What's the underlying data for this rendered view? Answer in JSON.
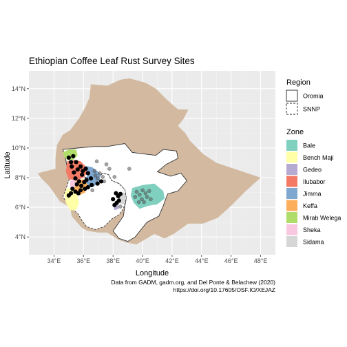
{
  "chart_data": {
    "type": "map",
    "title": "Ethiopian Coffee Leaf Rust Survey Sites",
    "xlabel": "Longitude",
    "ylabel": "Latitude",
    "xlim": [
      32.3,
      49.0
    ],
    "ylim": [
      2.8,
      15.2
    ],
    "x_ticks": [
      {
        "value": 34,
        "label": "34°E"
      },
      {
        "value": 36,
        "label": "36°E"
      },
      {
        "value": 38,
        "label": "38°E"
      },
      {
        "value": 40,
        "label": "40°E"
      },
      {
        "value": 42,
        "label": "42°E"
      },
      {
        "value": 44,
        "label": "44°E"
      },
      {
        "value": 46,
        "label": "46°E"
      },
      {
        "value": 48,
        "label": "48°E"
      }
    ],
    "y_ticks": [
      {
        "value": 4,
        "label": "4°N"
      },
      {
        "value": 6,
        "label": "6°N"
      },
      {
        "value": 8,
        "label": "8°N"
      },
      {
        "value": 10,
        "label": "10°N"
      },
      {
        "value": 12,
        "label": "12°N"
      },
      {
        "value": 14,
        "label": "14°N"
      }
    ],
    "grid": true,
    "background_color": "#ebebeb",
    "country_fill": "#d2b9a0",
    "region_legend": {
      "title": "Region",
      "items": [
        {
          "name": "Oromia",
          "linetype": "solid"
        },
        {
          "name": "SNNP",
          "linetype": "dashed"
        }
      ]
    },
    "zone_legend": {
      "title": "Zone",
      "items": [
        {
          "name": "Bale",
          "color": "#80d0c0"
        },
        {
          "name": "Bench Maji",
          "color": "#ffffa8"
        },
        {
          "name": "Gedeo",
          "color": "#b4aad2"
        },
        {
          "name": "Ilubabor",
          "color": "#f47a66"
        },
        {
          "name": "Jimma",
          "color": "#7ea8cf"
        },
        {
          "name": "Keffa",
          "color": "#fcae5a"
        },
        {
          "name": "Mirab Welega",
          "color": "#b0dd6a"
        },
        {
          "name": "Sheka",
          "color": "#f9c8e0"
        },
        {
          "name": "Sidama",
          "color": "#d6d6d6"
        }
      ]
    },
    "survey_sites": [
      {
        "lon": 35.0,
        "lat": 9.35
      },
      {
        "lon": 35.15,
        "lat": 9.05
      },
      {
        "lon": 35.3,
        "lat": 9.45
      },
      {
        "lon": 35.2,
        "lat": 8.75
      },
      {
        "lon": 35.5,
        "lat": 9.05
      },
      {
        "lon": 35.35,
        "lat": 8.35
      },
      {
        "lon": 35.6,
        "lat": 8.55
      },
      {
        "lon": 35.8,
        "lat": 8.75
      },
      {
        "lon": 35.95,
        "lat": 8.45
      },
      {
        "lon": 36.15,
        "lat": 8.6
      },
      {
        "lon": 36.3,
        "lat": 8.3
      },
      {
        "lon": 35.45,
        "lat": 7.95
      },
      {
        "lon": 35.7,
        "lat": 7.75
      },
      {
        "lon": 35.55,
        "lat": 7.55
      },
      {
        "lon": 35.85,
        "lat": 7.45
      },
      {
        "lon": 36.05,
        "lat": 7.7
      },
      {
        "lon": 35.25,
        "lat": 7.25
      },
      {
        "lon": 35.45,
        "lat": 7.05
      },
      {
        "lon": 35.15,
        "lat": 6.95
      },
      {
        "lon": 35.0,
        "lat": 6.8
      },
      {
        "lon": 36.1,
        "lat": 7.25
      },
      {
        "lon": 36.3,
        "lat": 7.35
      },
      {
        "lon": 36.55,
        "lat": 7.5
      },
      {
        "lon": 36.2,
        "lat": 7.85
      },
      {
        "lon": 36.5,
        "lat": 7.95
      },
      {
        "lon": 35.8,
        "lat": 7.15
      },
      {
        "lon": 35.65,
        "lat": 6.95
      },
      {
        "lon": 35.9,
        "lat": 8.2
      },
      {
        "lon": 38.2,
        "lat": 6.95
      },
      {
        "lon": 38.35,
        "lat": 6.75
      },
      {
        "lon": 38.4,
        "lat": 6.45
      },
      {
        "lon": 38.25,
        "lat": 6.3
      },
      {
        "lon": 38.1,
        "lat": 6.15
      },
      {
        "lon": 38.5,
        "lat": 6.9
      },
      {
        "lon": 38.0,
        "lat": 6.55
      },
      {
        "lon": 36.95,
        "lat": 7.6
      },
      {
        "lon": 37.2,
        "lat": 7.75
      }
    ],
    "survey_sites_faint": [
      {
        "lon": 36.8,
        "lat": 8.15
      },
      {
        "lon": 37.1,
        "lat": 8.3
      },
      {
        "lon": 37.3,
        "lat": 8.05
      },
      {
        "lon": 36.95,
        "lat": 7.95
      },
      {
        "lon": 37.4,
        "lat": 7.75
      },
      {
        "lon": 36.75,
        "lat": 8.45
      },
      {
        "lon": 37.75,
        "lat": 8.6
      },
      {
        "lon": 38.1,
        "lat": 8.05
      },
      {
        "lon": 39.1,
        "lat": 8.6
      },
      {
        "lon": 36.6,
        "lat": 7.15
      },
      {
        "lon": 37.55,
        "lat": 8.9
      },
      {
        "lon": 36.9,
        "lat": 9.1
      },
      {
        "lon": 39.6,
        "lat": 7.05
      },
      {
        "lon": 39.8,
        "lat": 6.85
      },
      {
        "lon": 40.0,
        "lat": 7.15
      },
      {
        "lon": 40.2,
        "lat": 6.95
      },
      {
        "lon": 39.95,
        "lat": 6.55
      },
      {
        "lon": 40.3,
        "lat": 6.7
      },
      {
        "lon": 39.75,
        "lat": 6.35
      },
      {
        "lon": 40.1,
        "lat": 6.35
      },
      {
        "lon": 40.45,
        "lat": 7.1
      },
      {
        "lon": 39.5,
        "lat": 6.7
      },
      {
        "lon": 40.55,
        "lat": 6.55
      },
      {
        "lon": 38.5,
        "lat": 6.05
      }
    ],
    "caption_line1": "Data from GADM, gadm.org, and Del Ponte & Belachew (2020)",
    "caption_line2": "https://doi.org/10.17605/OSF.IO/XEJAZ"
  }
}
